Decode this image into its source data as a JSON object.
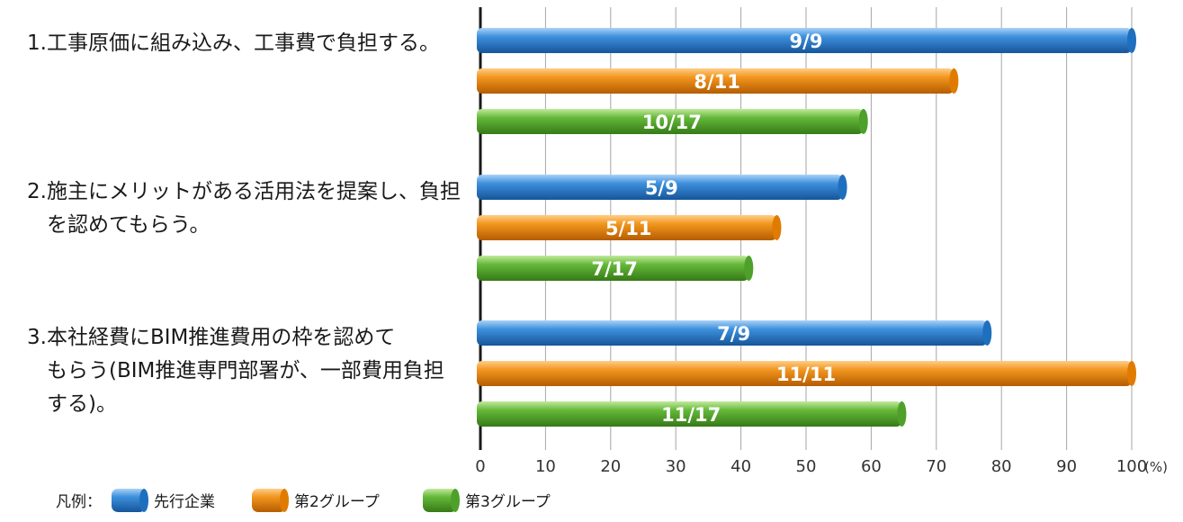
{
  "chart_data": {
    "type": "bar",
    "orientation": "horizontal",
    "categories": [
      {
        "lines": [
          "1.工事原価に組み込み、工事費で負担する。"
        ]
      },
      {
        "lines": [
          "2.施主にメリットがある活用法を提案し、負担",
          "を認めてもらう。"
        ]
      },
      {
        "lines": [
          "3.本社経費にBIM推進費用の枠を認めて",
          "もらう(BIM推進専門部署が、一部費用負担",
          "する)。"
        ]
      }
    ],
    "series": [
      {
        "name": "先行企業",
        "color": "#1f6fbf",
        "values": [
          100,
          55.6,
          77.8
        ],
        "labels": [
          "9/9",
          "5/9",
          "7/9"
        ]
      },
      {
        "name": "第2グループ",
        "color": "#e07b00",
        "values": [
          72.7,
          45.5,
          100
        ],
        "labels": [
          "8/11",
          "5/11",
          "11/11"
        ]
      },
      {
        "name": "第3グループ",
        "color": "#4ea02a",
        "values": [
          58.8,
          41.2,
          64.7
        ],
        "labels": [
          "10/17",
          "7/17",
          "11/17"
        ]
      }
    ],
    "xlim": [
      0,
      100
    ],
    "x_ticks": [
      "0",
      "10",
      "20",
      "30",
      "40",
      "50",
      "60",
      "70",
      "80",
      "90",
      "100"
    ],
    "x_unit": "(%)",
    "grid": true,
    "legend_title": "凡例：",
    "legend_position": "bottom-left"
  }
}
